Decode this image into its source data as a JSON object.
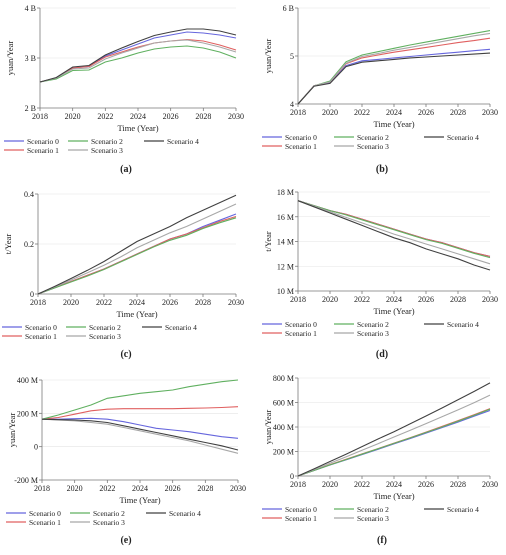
{
  "colors": {
    "scenario0": "#6666dd",
    "scenario1": "#e06060",
    "scenario2": "#60b060",
    "scenario3": "#a8a8a8",
    "scenario4": "#404040",
    "axis": "#7a7a7a",
    "grid": "#e4e4e4"
  },
  "chart_data": [
    {
      "panel": "(a)",
      "type": "line",
      "xlabel": "Time (Year)",
      "ylabel": "yuan/Year",
      "x": [
        2018,
        2019,
        2020,
        2021,
        2022,
        2023,
        2024,
        2025,
        2026,
        2027,
        2028,
        2029,
        2030
      ],
      "xticks": [
        2018,
        2020,
        2022,
        2024,
        2026,
        2028,
        2030
      ],
      "xticklabels": [
        "2018",
        "2020",
        "2022",
        "2024",
        "2026",
        "2028",
        "2030"
      ],
      "ylim": [
        2,
        4
      ],
      "yticks": [
        2,
        3,
        4
      ],
      "yticklabels": [
        "2 B",
        "3 B",
        "4 B"
      ],
      "series": [
        {
          "name": "Scenario 0",
          "values": [
            2.52,
            2.6,
            2.8,
            2.83,
            3.04,
            3.16,
            3.28,
            3.4,
            3.46,
            3.52,
            3.5,
            3.46,
            3.4
          ]
        },
        {
          "name": "Scenario 1",
          "values": [
            2.52,
            2.6,
            2.8,
            2.83,
            3.02,
            3.12,
            3.22,
            3.3,
            3.34,
            3.37,
            3.34,
            3.26,
            3.16
          ]
        },
        {
          "name": "Scenario 2",
          "values": [
            2.52,
            2.58,
            2.75,
            2.76,
            2.92,
            3.0,
            3.1,
            3.18,
            3.22,
            3.24,
            3.2,
            3.12,
            3.0
          ]
        },
        {
          "name": "Scenario 3",
          "values": [
            2.52,
            2.6,
            2.78,
            2.8,
            2.98,
            3.1,
            3.2,
            3.3,
            3.34,
            3.36,
            3.3,
            3.22,
            3.12
          ]
        },
        {
          "name": "Scenario 4",
          "values": [
            2.52,
            2.61,
            2.82,
            2.85,
            3.06,
            3.2,
            3.33,
            3.45,
            3.52,
            3.58,
            3.58,
            3.54,
            3.46
          ]
        }
      ]
    },
    {
      "panel": "(b)",
      "type": "line",
      "xlabel": "Time (Year)",
      "ylabel": "yuan/Year",
      "x": [
        2018,
        2019,
        2020,
        2021,
        2022,
        2023,
        2024,
        2025,
        2026,
        2027,
        2028,
        2029,
        2030
      ],
      "xticks": [
        2018,
        2020,
        2022,
        2024,
        2026,
        2028,
        2030
      ],
      "xticklabels": [
        "2018",
        "2020",
        "2022",
        "2024",
        "2026",
        "2028",
        "2030"
      ],
      "ylim": [
        4,
        6
      ],
      "yticks": [
        4,
        5,
        6
      ],
      "yticklabels": [
        "4",
        "5",
        "6 B"
      ],
      "series": [
        {
          "name": "Scenario 0",
          "values": [
            4.0,
            4.38,
            4.44,
            4.8,
            4.9,
            4.93,
            4.96,
            4.99,
            5.02,
            5.05,
            5.08,
            5.11,
            5.14
          ]
        },
        {
          "name": "Scenario 1",
          "values": [
            4.0,
            4.38,
            4.46,
            4.84,
            4.96,
            5.02,
            5.08,
            5.13,
            5.18,
            5.23,
            5.28,
            5.32,
            5.37
          ]
        },
        {
          "name": "Scenario 2",
          "values": [
            4.0,
            4.38,
            4.48,
            4.88,
            5.02,
            5.09,
            5.16,
            5.23,
            5.29,
            5.35,
            5.41,
            5.47,
            5.53
          ]
        },
        {
          "name": "Scenario 3",
          "values": [
            4.0,
            4.38,
            4.46,
            4.85,
            4.99,
            5.05,
            5.12,
            5.18,
            5.24,
            5.3,
            5.36,
            5.42,
            5.47
          ]
        },
        {
          "name": "Scenario 4",
          "values": [
            4.0,
            4.37,
            4.43,
            4.78,
            4.87,
            4.9,
            4.93,
            4.96,
            4.98,
            5.0,
            5.02,
            5.04,
            5.06
          ]
        }
      ]
    },
    {
      "panel": "(c)",
      "type": "line",
      "xlabel": "Time (Year)",
      "ylabel": "t/Year",
      "x": [
        2018,
        2019,
        2020,
        2021,
        2022,
        2023,
        2024,
        2025,
        2026,
        2027,
        2028,
        2029,
        2030
      ],
      "xticks": [
        2018,
        2020,
        2022,
        2024,
        2026,
        2028,
        2030
      ],
      "xticklabels": [
        "2018",
        "2020",
        "2022",
        "2024",
        "2026",
        "2028",
        "2030"
      ],
      "ylim": [
        0,
        0.4
      ],
      "yticks": [
        0,
        0.2,
        0.4
      ],
      "yticklabels": [
        "0",
        "0.2",
        "0.4"
      ],
      "series": [
        {
          "name": "Scenario 0",
          "values": [
            0.0,
            0.025,
            0.05,
            0.075,
            0.1,
            0.13,
            0.16,
            0.19,
            0.22,
            0.24,
            0.27,
            0.295,
            0.32
          ]
        },
        {
          "name": "Scenario 1",
          "values": [
            0.0,
            0.025,
            0.05,
            0.075,
            0.1,
            0.13,
            0.16,
            0.19,
            0.22,
            0.24,
            0.265,
            0.29,
            0.31
          ]
        },
        {
          "name": "Scenario 2",
          "values": [
            0.0,
            0.024,
            0.048,
            0.072,
            0.098,
            0.128,
            0.158,
            0.188,
            0.215,
            0.235,
            0.262,
            0.285,
            0.305
          ]
        },
        {
          "name": "Scenario 3",
          "values": [
            0.0,
            0.028,
            0.056,
            0.085,
            0.115,
            0.148,
            0.185,
            0.215,
            0.245,
            0.27,
            0.3,
            0.33,
            0.36
          ]
        },
        {
          "name": "Scenario 4",
          "values": [
            0.0,
            0.03,
            0.062,
            0.095,
            0.13,
            0.17,
            0.21,
            0.24,
            0.27,
            0.305,
            0.335,
            0.365,
            0.395
          ]
        }
      ]
    },
    {
      "panel": "(d)",
      "type": "line",
      "xlabel": "Time (Year)",
      "ylabel": "t/Year",
      "x": [
        2018,
        2019,
        2020,
        2021,
        2022,
        2023,
        2024,
        2025,
        2026,
        2027,
        2028,
        2029,
        2030
      ],
      "xticks": [
        2018,
        2020,
        2022,
        2024,
        2026,
        2028,
        2030
      ],
      "xticklabels": [
        "2018",
        "2020",
        "2022",
        "2024",
        "2026",
        "2028",
        "2030"
      ],
      "ylim": [
        10,
        18
      ],
      "yticks": [
        10,
        12,
        14,
        16,
        18
      ],
      "yticklabels": [
        "10 M",
        "12 M",
        "14 M",
        "16 M",
        "18 M"
      ],
      "series": [
        {
          "name": "Scenario 0",
          "values": [
            17.3,
            16.9,
            16.5,
            16.2,
            15.8,
            15.4,
            15.0,
            14.6,
            14.2,
            13.9,
            13.5,
            13.1,
            12.8
          ]
        },
        {
          "name": "Scenario 1",
          "values": [
            17.3,
            16.9,
            16.5,
            16.2,
            15.8,
            15.4,
            15.0,
            14.6,
            14.2,
            13.9,
            13.5,
            13.1,
            12.8
          ]
        },
        {
          "name": "Scenario 2",
          "values": [
            17.3,
            16.9,
            16.5,
            16.15,
            15.75,
            15.35,
            14.95,
            14.55,
            14.15,
            13.85,
            13.45,
            13.05,
            12.7
          ]
        },
        {
          "name": "Scenario 3",
          "values": [
            17.3,
            16.85,
            16.4,
            15.95,
            15.5,
            15.05,
            14.6,
            14.2,
            13.8,
            13.4,
            13.0,
            12.6,
            12.2
          ]
        },
        {
          "name": "Scenario 4",
          "values": [
            17.3,
            16.8,
            16.3,
            15.8,
            15.3,
            14.8,
            14.3,
            13.9,
            13.4,
            13.0,
            12.6,
            12.1,
            11.7
          ]
        }
      ]
    },
    {
      "panel": "(e)",
      "type": "line",
      "xlabel": "Time (Year)",
      "ylabel": "yuan/Year",
      "x": [
        2018,
        2019,
        2020,
        2021,
        2022,
        2023,
        2024,
        2025,
        2026,
        2027,
        2028,
        2029,
        2030
      ],
      "xticks": [
        2018,
        2020,
        2022,
        2024,
        2026,
        2028,
        2030
      ],
      "xticklabels": [
        "2018",
        "2020",
        "2022",
        "2024",
        "2026",
        "2028",
        "2030"
      ],
      "ylim": [
        -200,
        400
      ],
      "yticks": [
        -200,
        0,
        200,
        400
      ],
      "yticklabels": [
        "-200 M",
        "0",
        "200 M",
        "400 M"
      ],
      "series": [
        {
          "name": "Scenario 0",
          "values": [
            165,
            165,
            168,
            170,
            165,
            150,
            130,
            110,
            100,
            90,
            75,
            60,
            50
          ]
        },
        {
          "name": "Scenario 1",
          "values": [
            165,
            175,
            195,
            215,
            225,
            228,
            228,
            228,
            228,
            230,
            232,
            235,
            240
          ]
        },
        {
          "name": "Scenario 2",
          "values": [
            165,
            190,
            220,
            250,
            290,
            305,
            320,
            330,
            340,
            360,
            375,
            390,
            400
          ]
        },
        {
          "name": "Scenario 3",
          "values": [
            165,
            160,
            155,
            145,
            135,
            115,
            95,
            75,
            55,
            35,
            10,
            -15,
            -40
          ]
        },
        {
          "name": "Scenario 4",
          "values": [
            165,
            162,
            160,
            155,
            145,
            125,
            105,
            85,
            65,
            45,
            25,
            5,
            -20
          ]
        }
      ]
    },
    {
      "panel": "(f)",
      "type": "line",
      "xlabel": "Time (Year)",
      "ylabel": "yuan/Year",
      "x": [
        2018,
        2019,
        2020,
        2021,
        2022,
        2023,
        2024,
        2025,
        2026,
        2027,
        2028,
        2029,
        2030
      ],
      "xticks": [
        2018,
        2020,
        2022,
        2024,
        2026,
        2028,
        2030
      ],
      "xticklabels": [
        "2018",
        "2020",
        "2022",
        "2024",
        "2026",
        "2028",
        "2030"
      ],
      "ylim": [
        0,
        800
      ],
      "yticks": [
        0,
        200,
        400,
        600,
        800
      ],
      "yticklabels": [
        "0",
        "200 M",
        "400 M",
        "600 M",
        "800 M"
      ],
      "series": [
        {
          "name": "Scenario 0",
          "values": [
            0,
            45,
            90,
            132,
            175,
            218,
            262,
            305,
            350,
            395,
            440,
            488,
            535
          ]
        },
        {
          "name": "Scenario 1",
          "values": [
            0,
            46,
            92,
            136,
            180,
            224,
            268,
            312,
            358,
            405,
            452,
            500,
            550
          ]
        },
        {
          "name": "Scenario 2",
          "values": [
            0,
            45,
            91,
            134,
            178,
            222,
            266,
            310,
            355,
            400,
            447,
            495,
            545
          ]
        },
        {
          "name": "Scenario 3",
          "values": [
            0,
            52,
            104,
            156,
            210,
            264,
            318,
            372,
            428,
            484,
            540,
            598,
            660
          ]
        },
        {
          "name": "Scenario 4",
          "values": [
            0,
            58,
            118,
            178,
            240,
            302,
            362,
            425,
            490,
            555,
            622,
            690,
            760
          ]
        }
      ]
    }
  ]
}
